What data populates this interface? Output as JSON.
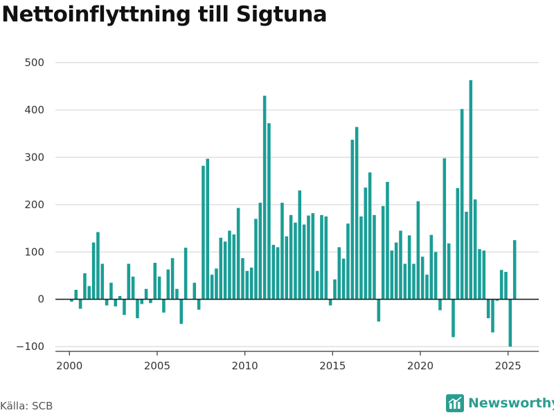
{
  "title": "Nettoinflyttning till Sigtuna",
  "source": "Källa: SCB",
  "brand": {
    "name": "Newsworthy",
    "icon": "chart-logo-icon"
  },
  "colors": {
    "bar": "#1a9e96",
    "grid": "#d9d9d9",
    "zero": "#222222",
    "brand": "#2a9d8f"
  },
  "chart_data": {
    "type": "bar",
    "title": "Nettoinflyttning till Sigtuna",
    "xlabel": "",
    "ylabel": "",
    "ylim": [
      -110,
      530
    ],
    "xlim": [
      1999.2,
      2026.75
    ],
    "grid": true,
    "yticks": [
      -100,
      0,
      100,
      200,
      300,
      400,
      500
    ],
    "ytick_labels": [
      "−100",
      "0",
      "100",
      "200",
      "300",
      "400",
      "500"
    ],
    "xticks": [
      2000,
      2005,
      2010,
      2015,
      2020,
      2025
    ],
    "xtick_labels": [
      "2000",
      "2005",
      "2010",
      "2015",
      "2020",
      "2025"
    ],
    "x_unit": "quarter",
    "start_period": "2000-Q1",
    "values": [
      -5,
      20,
      -20,
      55,
      28,
      120,
      142,
      75,
      -13,
      35,
      -15,
      7,
      -33,
      75,
      48,
      -40,
      -10,
      22,
      -8,
      77,
      48,
      -28,
      63,
      87,
      22,
      -52,
      109,
      0,
      35,
      -22,
      282,
      297,
      52,
      65,
      130,
      122,
      145,
      137,
      193,
      87,
      60,
      67,
      170,
      204,
      430,
      372,
      115,
      110,
      204,
      133,
      178,
      162,
      230,
      158,
      177,
      182,
      60,
      178,
      175,
      -13,
      42,
      110,
      86,
      160,
      337,
      364,
      175,
      236,
      268,
      178,
      -47,
      197,
      248,
      103,
      120,
      145,
      75,
      135,
      75,
      207,
      90,
      52,
      136,
      100,
      -23,
      298,
      118,
      -80,
      235,
      402,
      185,
      463,
      211,
      106,
      103,
      -40,
      -70,
      -3,
      62,
      58,
      -100,
      125
    ]
  }
}
